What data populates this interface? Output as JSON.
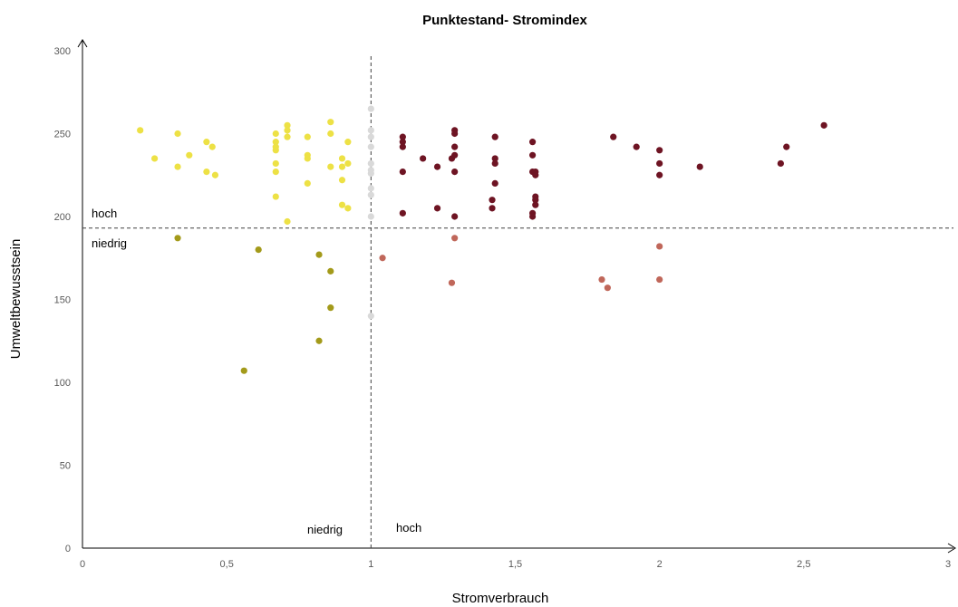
{
  "chart_data": {
    "type": "scatter",
    "title": "Punktestand- Stromindex",
    "xlabel": "Stromverbrauch",
    "ylabel": "Umweltbewusstsein",
    "xlim": [
      0,
      3
    ],
    "ylim": [
      0,
      300
    ],
    "x_ticks": [
      {
        "value": 0,
        "label": "0"
      },
      {
        "value": 0.5,
        "label": "0,5"
      },
      {
        "value": 1,
        "label": "1"
      },
      {
        "value": 1.5,
        "label": "1,5"
      },
      {
        "value": 2,
        "label": "2"
      },
      {
        "value": 2.5,
        "label": "2,5"
      },
      {
        "value": 3,
        "label": "3"
      }
    ],
    "y_ticks": [
      {
        "value": 0,
        "label": "0"
      },
      {
        "value": 50,
        "label": "50"
      },
      {
        "value": 100,
        "label": "100"
      },
      {
        "value": 150,
        "label": "150"
      },
      {
        "value": 200,
        "label": "200"
      },
      {
        "value": 250,
        "label": "250"
      },
      {
        "value": 300,
        "label": "300"
      }
    ],
    "grid": false,
    "legend": "none",
    "thresholds": {
      "x": 1,
      "y": 193
    },
    "quadrant_labels": {
      "y_high": "hoch",
      "y_low": "niedrig",
      "x_low": "niedrig",
      "x_high": "hoch"
    },
    "series": [
      {
        "color": "#EDE145",
        "points": [
          [
            0.2,
            252
          ],
          [
            0.25,
            235
          ],
          [
            0.33,
            250
          ],
          [
            0.33,
            230
          ],
          [
            0.37,
            237
          ],
          [
            0.43,
            245
          ],
          [
            0.43,
            227
          ],
          [
            0.45,
            242
          ],
          [
            0.46,
            225
          ],
          [
            0.67,
            250
          ],
          [
            0.67,
            245
          ],
          [
            0.67,
            242
          ],
          [
            0.67,
            240
          ],
          [
            0.67,
            232
          ],
          [
            0.67,
            227
          ],
          [
            0.67,
            212
          ],
          [
            0.71,
            255
          ],
          [
            0.71,
            252
          ],
          [
            0.71,
            248
          ],
          [
            0.71,
            197
          ],
          [
            0.78,
            248
          ],
          [
            0.78,
            237
          ],
          [
            0.78,
            235
          ],
          [
            0.78,
            220
          ],
          [
            0.86,
            257
          ],
          [
            0.86,
            250
          ],
          [
            0.86,
            230
          ],
          [
            0.9,
            235
          ],
          [
            0.9,
            230
          ],
          [
            0.9,
            222
          ],
          [
            0.9,
            207
          ],
          [
            0.92,
            245
          ],
          [
            0.92,
            232
          ],
          [
            0.92,
            205
          ]
        ]
      },
      {
        "color": "#A39A1A",
        "points": [
          [
            0.33,
            187
          ],
          [
            0.56,
            107
          ],
          [
            0.61,
            180
          ],
          [
            0.82,
            177
          ],
          [
            0.82,
            125
          ],
          [
            0.86,
            167
          ],
          [
            0.86,
            145
          ]
        ]
      },
      {
        "color": "#D9D9D9",
        "points": [
          [
            1.0,
            265
          ],
          [
            1.0,
            252
          ],
          [
            1.0,
            248
          ],
          [
            1.0,
            242
          ],
          [
            1.0,
            232
          ],
          [
            1.0,
            228
          ],
          [
            1.0,
            226
          ],
          [
            1.0,
            217
          ],
          [
            1.0,
            213
          ],
          [
            1.0,
            200
          ],
          [
            1.0,
            140
          ]
        ]
      },
      {
        "color": "#6E1423",
        "points": [
          [
            1.11,
            248
          ],
          [
            1.11,
            245
          ],
          [
            1.11,
            242
          ],
          [
            1.11,
            227
          ],
          [
            1.11,
            202
          ],
          [
            1.18,
            235
          ],
          [
            1.23,
            230
          ],
          [
            1.23,
            205
          ],
          [
            1.29,
            252
          ],
          [
            1.29,
            250
          ],
          [
            1.29,
            242
          ],
          [
            1.29,
            237
          ],
          [
            1.29,
            227
          ],
          [
            1.29,
            200
          ],
          [
            1.28,
            235
          ],
          [
            1.42,
            210
          ],
          [
            1.42,
            205
          ],
          [
            1.43,
            248
          ],
          [
            1.43,
            235
          ],
          [
            1.43,
            232
          ],
          [
            1.43,
            220
          ],
          [
            1.56,
            245
          ],
          [
            1.56,
            237
          ],
          [
            1.56,
            227
          ],
          [
            1.56,
            202
          ],
          [
            1.56,
            200
          ],
          [
            1.57,
            227
          ],
          [
            1.57,
            225
          ],
          [
            1.57,
            212
          ],
          [
            1.57,
            210
          ],
          [
            1.57,
            207
          ],
          [
            1.84,
            248
          ],
          [
            1.92,
            242
          ],
          [
            2.0,
            240
          ],
          [
            2.0,
            232
          ],
          [
            2.0,
            225
          ],
          [
            2.14,
            230
          ],
          [
            2.42,
            232
          ],
          [
            2.44,
            242
          ],
          [
            2.57,
            255
          ]
        ]
      },
      {
        "color": "#C0675A",
        "points": [
          [
            1.04,
            175
          ],
          [
            1.28,
            160
          ],
          [
            1.29,
            187
          ],
          [
            1.8,
            162
          ],
          [
            1.82,
            157
          ],
          [
            2.0,
            182
          ],
          [
            2.0,
            162
          ]
        ]
      }
    ]
  }
}
